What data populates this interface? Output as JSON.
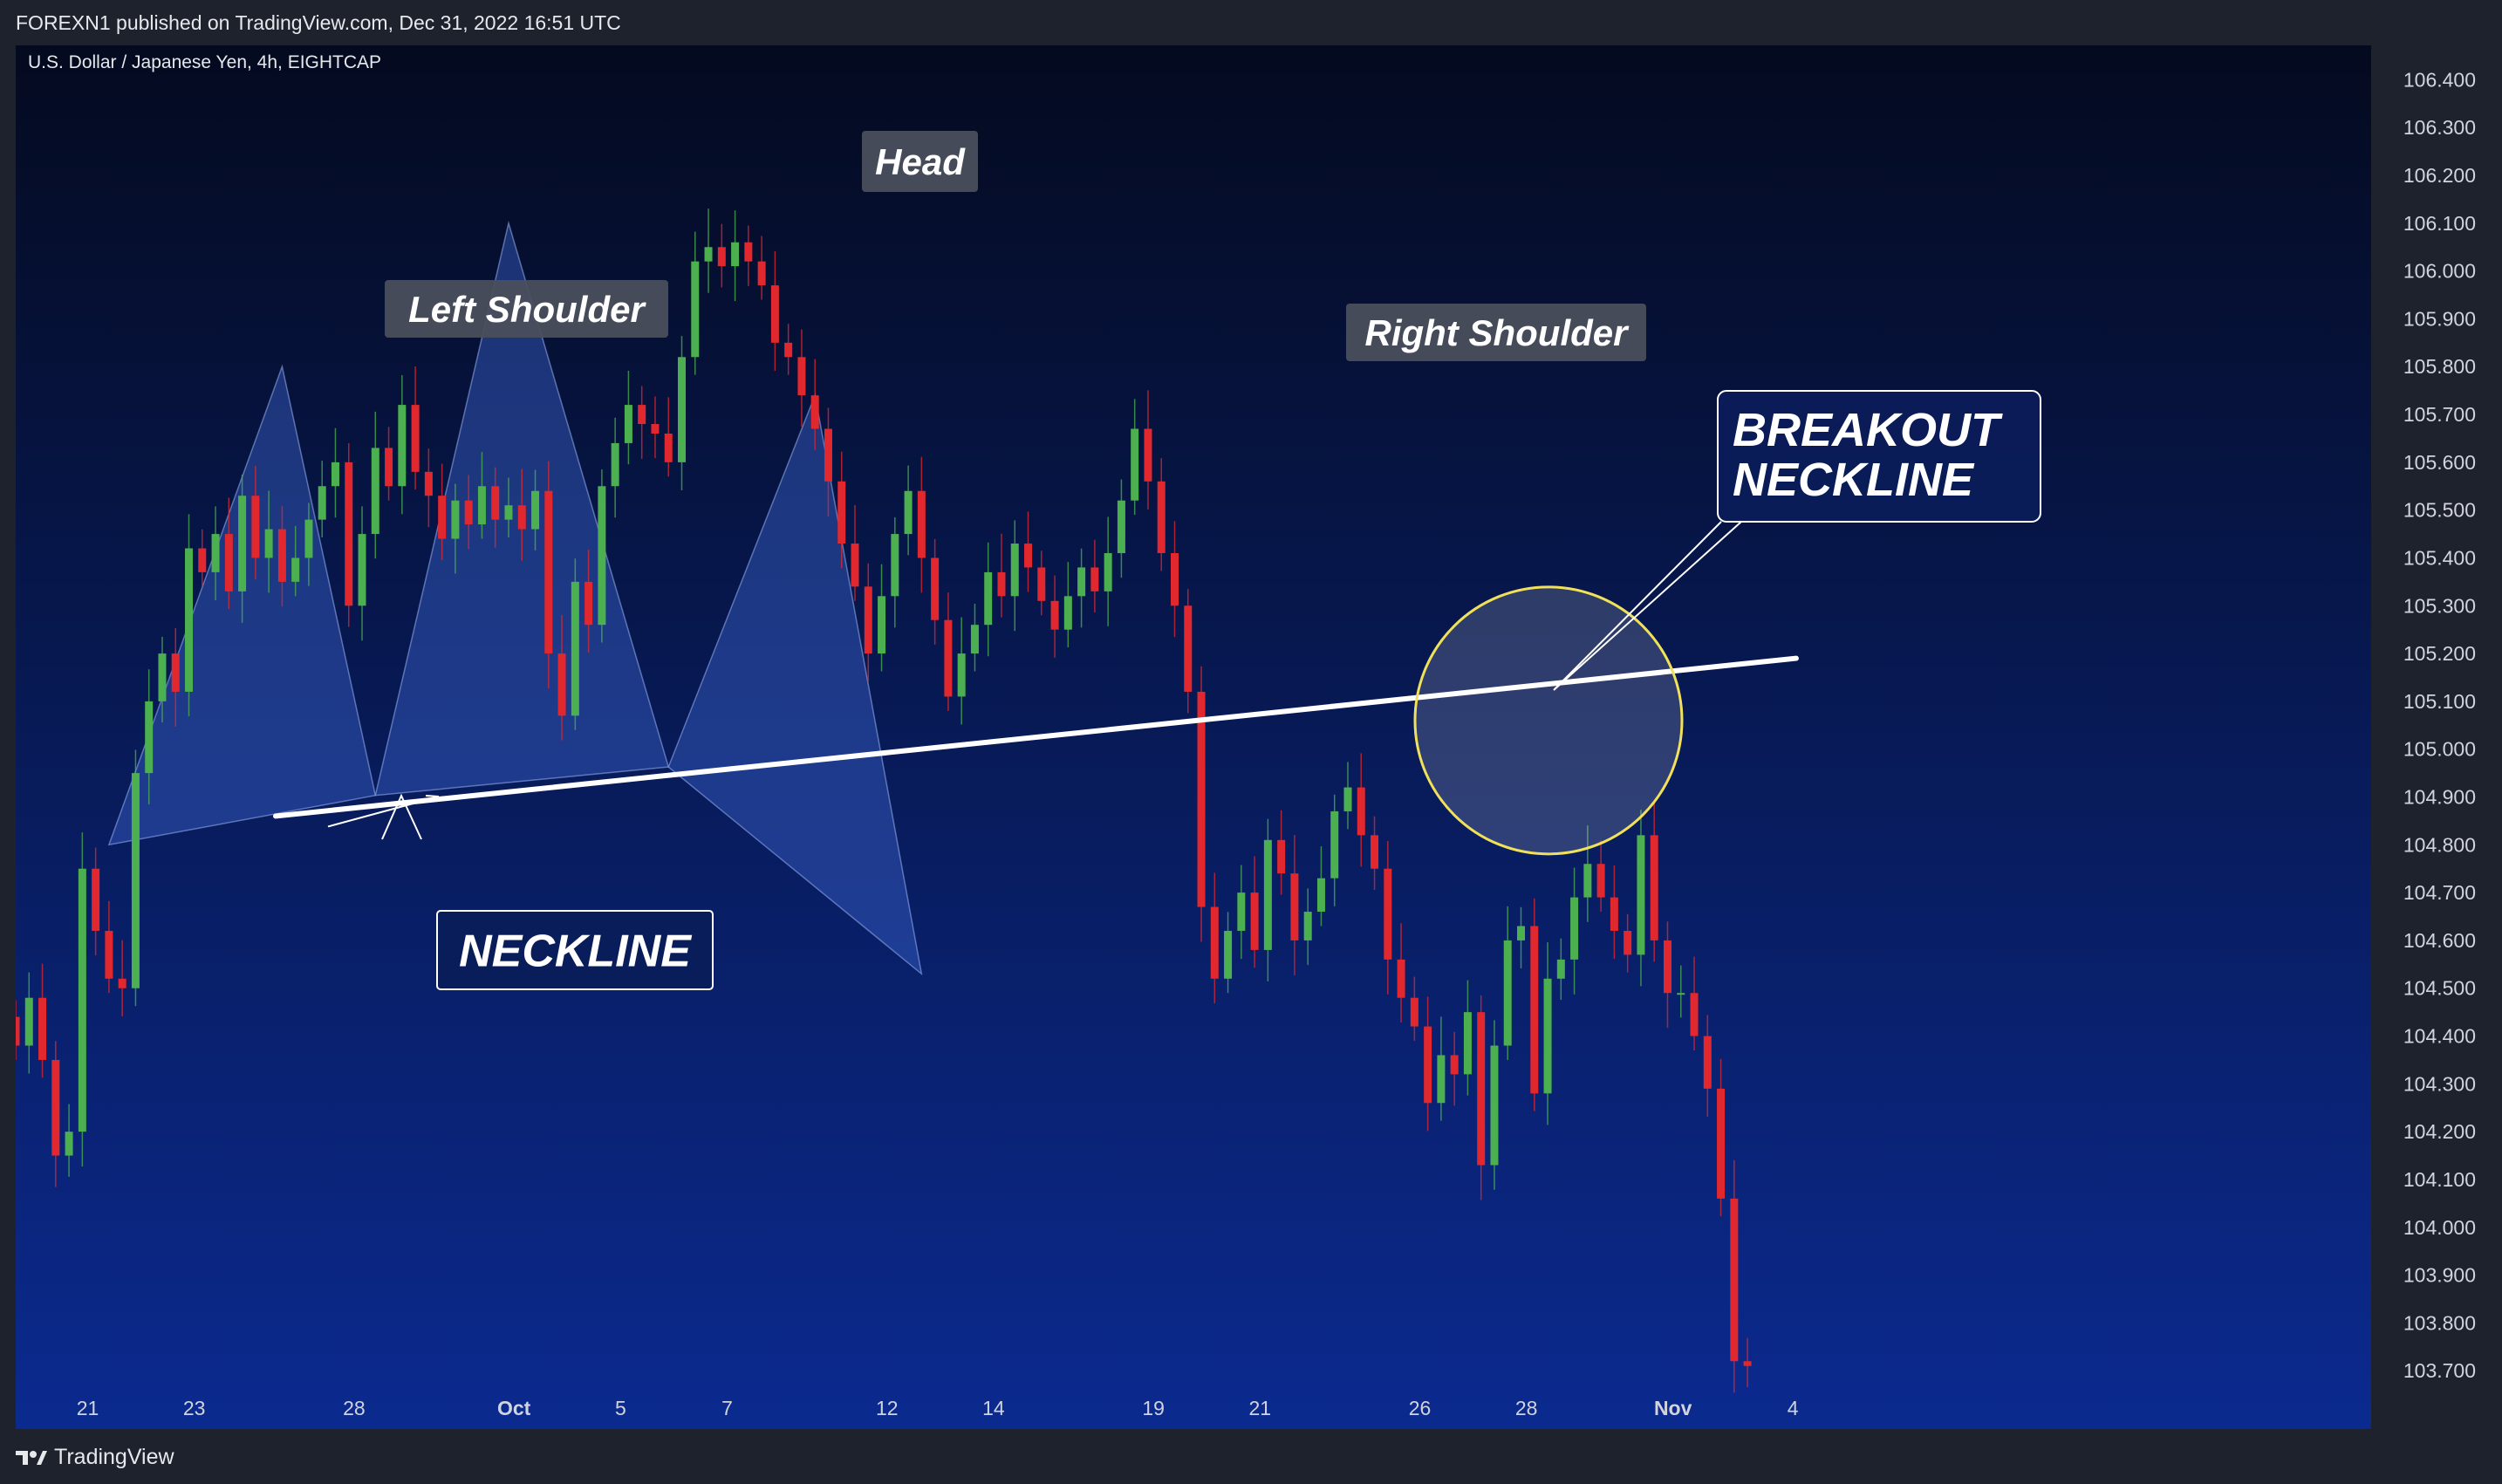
{
  "header": {
    "published": "FOREXN1 published on TradingView.com, Dec 31, 2022 16:51 UTC"
  },
  "footer": {
    "brand": "TradingView"
  },
  "colors": {
    "bg_top": "#040a1f",
    "bg_bottom": "#0b2a8f",
    "up": "#4caf50",
    "down": "#e0282e",
    "pattern_fill": "#3a62c9",
    "neckline": "#ffffff",
    "highlight": "#f1e05a"
  },
  "chart_data": {
    "type": "candlestick",
    "symbol_title": "U.S. Dollar / Japanese Yen, 4h, EIGHTCAP",
    "ylim": [
      103.6,
      106.45
    ],
    "y_ticks": [
      "106.400",
      "106.300",
      "106.200",
      "106.100",
      "106.000",
      "105.900",
      "105.800",
      "105.700",
      "105.600",
      "105.500",
      "105.400",
      "105.300",
      "105.200",
      "105.100",
      "105.000",
      "104.900",
      "104.800",
      "104.700",
      "104.600",
      "104.500",
      "104.400",
      "104.300",
      "104.200",
      "104.100",
      "104.000",
      "103.900",
      "103.800",
      "103.700"
    ],
    "x_ticks": [
      {
        "label": "21",
        "bar": 2
      },
      {
        "label": "23",
        "bar": 10
      },
      {
        "label": "28",
        "bar": 22
      },
      {
        "label": "Oct",
        "bar": 34
      },
      {
        "label": "5",
        "bar": 42
      },
      {
        "label": "7",
        "bar": 50
      },
      {
        "label": "12",
        "bar": 62
      },
      {
        "label": "14",
        "bar": 70
      },
      {
        "label": "19",
        "bar": 82
      },
      {
        "label": "21",
        "bar": 90
      },
      {
        "label": "26",
        "bar": 102
      },
      {
        "label": "28",
        "bar": 110
      },
      {
        "label": "Nov",
        "bar": 121
      },
      {
        "label": "4",
        "bar": 130
      }
    ],
    "closes": [
      104.38,
      104.48,
      104.35,
      104.15,
      104.2,
      104.75,
      104.62,
      104.52,
      104.5,
      104.95,
      105.1,
      105.2,
      105.12,
      105.42,
      105.37,
      105.45,
      105.33,
      105.53,
      105.4,
      105.46,
      105.35,
      105.4,
      105.48,
      105.55,
      105.6,
      105.3,
      105.45,
      105.63,
      105.55,
      105.72,
      105.58,
      105.53,
      105.44,
      105.52,
      105.47,
      105.55,
      105.48,
      105.51,
      105.46,
      105.54,
      105.2,
      105.07,
      105.35,
      105.26,
      105.55,
      105.64,
      105.72,
      105.68,
      105.66,
      105.6,
      105.82,
      106.02,
      106.05,
      106.01,
      106.06,
      106.02,
      105.97,
      105.85,
      105.82,
      105.74,
      105.67,
      105.56,
      105.43,
      105.34,
      105.2,
      105.32,
      105.45,
      105.54,
      105.4,
      105.27,
      105.11,
      105.2,
      105.26,
      105.37,
      105.32,
      105.43,
      105.38,
      105.31,
      105.25,
      105.32,
      105.38,
      105.33,
      105.41,
      105.52,
      105.67,
      105.56,
      105.41,
      105.3,
      105.12,
      104.67,
      104.52,
      104.62,
      104.7,
      104.58,
      104.81,
      104.74,
      104.6,
      104.66,
      104.73,
      104.87,
      104.92,
      104.82,
      104.75,
      104.56,
      104.48,
      104.42,
      104.26,
      104.36,
      104.32,
      104.45,
      104.13,
      104.38,
      104.6,
      104.63,
      104.28,
      104.52,
      104.56,
      104.69,
      104.76,
      104.69,
      104.62,
      104.57,
      104.82,
      104.6,
      104.49,
      104.49,
      104.4,
      104.29,
      104.06,
      103.72,
      103.71
    ],
    "pattern": {
      "left_shoulder_label": "Left Shoulder",
      "head_label": "Head",
      "right_shoulder_label": "Right Shoulder",
      "neckline_label": "NECKLINE",
      "breakout_label_line1": "BREAKOUT",
      "breakout_label_line2": "NECKLINE",
      "left_shoulder_price": 105.8,
      "head_price": 106.1,
      "right_shoulder_price": 105.74,
      "neckline_start": {
        "bar": 11,
        "price": 104.86
      },
      "neckline_end": {
        "bar": 133,
        "price": 105.19
      }
    }
  }
}
